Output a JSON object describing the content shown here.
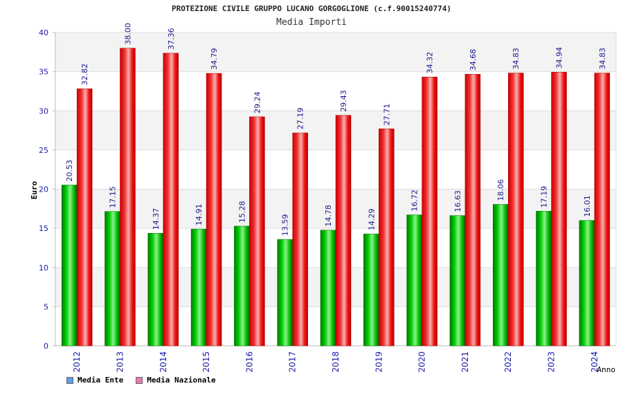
{
  "chart_data": {
    "type": "bar",
    "title": "PROTEZIONE CIVILE GRUPPO LUCANO GORGOGLIONE (c.f.90015240774)",
    "subtitle": "Media Importi",
    "xlabel": "Anno",
    "ylabel": "Euro",
    "ylim": [
      0,
      40
    ],
    "yticks": [
      0,
      5,
      10,
      15,
      20,
      25,
      30,
      35,
      40
    ],
    "categories": [
      "2012",
      "2013",
      "2014",
      "2015",
      "2016",
      "2017",
      "2018",
      "2019",
      "2020",
      "2021",
      "2022",
      "2023",
      "2024"
    ],
    "series": [
      {
        "name": "Media Ente",
        "color": "#00c000",
        "legend_color": "#5aa0e8",
        "values": [
          20.53,
          17.15,
          14.37,
          14.91,
          15.28,
          13.59,
          14.78,
          14.29,
          16.72,
          16.63,
          18.06,
          17.19,
          16.01
        ],
        "labels": [
          "20.53",
          "17.15",
          "14.37",
          "14.91",
          "15.28",
          "13.59",
          "14.78",
          "14.29",
          "16.72",
          "16.63",
          "18.06",
          "17.19",
          "16.01"
        ]
      },
      {
        "name": "Media Nazionale",
        "color": "#ee1111",
        "legend_color": "#e87ab0",
        "values": [
          32.82,
          38.0,
          37.36,
          34.79,
          29.24,
          27.19,
          29.43,
          27.71,
          34.32,
          34.68,
          34.83,
          34.94,
          34.83
        ],
        "labels": [
          "32.82",
          "38.00",
          "37.36",
          "34.79",
          "29.24",
          "27.19",
          "29.43",
          "27.71",
          "34.32",
          "34.68",
          "34.83",
          "34.94",
          "34.83"
        ]
      }
    ],
    "grid": true,
    "legend_position": "bottom-left"
  }
}
